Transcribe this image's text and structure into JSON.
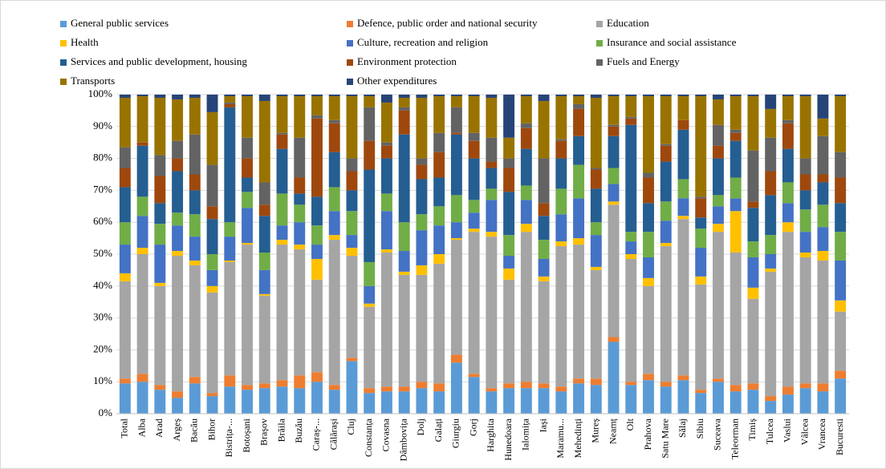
{
  "chart_data": {
    "type": "stacked_bar",
    "categories": [
      "Total",
      "Alba",
      "Arad",
      "Argeș",
      "Bacău",
      "Bihor",
      "Bistrița-...",
      "Botoșani",
      "Brașov",
      "Brăila",
      "Buzău",
      "Caraș-...",
      "Călărași",
      "Cluj",
      "Constanța",
      "Covasna",
      "Dâmbovița",
      "Dolj",
      "Galați",
      "Giurgiu",
      "Gorj",
      "Harghita",
      "Hunedoara",
      "Ialomița",
      "Iași",
      "Maramu...",
      "Mehedinți",
      "Mureș",
      "Neamț",
      "Olt",
      "Prahova",
      "Satu Mare",
      "Sălaj",
      "Sibiu",
      "Suceava",
      "Teleorman",
      "Timiș",
      "Tulcea",
      "Vaslui",
      "Vâlcea",
      "Vrancea",
      "Bucuresti"
    ],
    "series": [
      {
        "name": "General public services",
        "color": "#5b9bd5",
        "values": [
          9.5,
          10,
          7.5,
          5,
          9.5,
          5.5,
          8.5,
          7.5,
          8,
          8.5,
          8,
          10,
          7.5,
          16.5,
          6.5,
          7,
          7,
          8,
          7,
          16,
          11.5,
          7,
          8,
          8,
          8,
          7,
          9.5,
          9,
          22.5,
          9,
          10.5,
          8.5,
          10.5,
          6.5,
          10,
          7,
          7.5,
          4,
          6,
          8,
          7,
          11
        ]
      },
      {
        "name": "Defence, public order and national security",
        "color": "#ed7d31",
        "values": [
          1.5,
          2.5,
          1.5,
          2,
          2,
          1,
          3.5,
          1.5,
          1.5,
          2,
          4,
          3,
          1.5,
          1,
          1.5,
          1.5,
          1.5,
          2,
          2.5,
          2.5,
          1,
          1,
          1.5,
          2,
          1.5,
          1.5,
          1.5,
          2,
          1.5,
          1,
          2,
          1.5,
          1.5,
          1,
          1,
          2,
          2,
          1.5,
          2.5,
          1.5,
          2.5,
          2.5
        ]
      },
      {
        "name": "Education",
        "color": "#a5a5a5",
        "values": [
          30.5,
          37.5,
          31,
          42.5,
          35,
          31.5,
          35.5,
          44,
          27.5,
          42.5,
          39.5,
          29,
          45.5,
          32,
          25.5,
          42,
          35,
          33.5,
          37.5,
          36,
          44.5,
          47.5,
          32.5,
          47,
          32,
          44,
          42,
          34,
          41.5,
          38.5,
          27.5,
          42.5,
          49,
          33,
          46,
          41.5,
          26.5,
          39,
          48.5,
          39.5,
          38.5,
          18.5
        ]
      },
      {
        "name": "Health",
        "color": "#ffc000",
        "values": [
          2.5,
          2,
          1,
          1.5,
          1.5,
          2,
          0.5,
          0.5,
          0.5,
          1.5,
          1.5,
          6.5,
          1.5,
          2.5,
          1,
          1,
          1,
          3,
          3,
          0.5,
          1,
          1.5,
          3.5,
          2.5,
          1.5,
          1.5,
          2,
          1,
          1,
          1.5,
          2.5,
          1,
          1,
          2.5,
          2.5,
          13,
          3.5,
          1,
          3,
          1.5,
          3,
          3.5
        ]
      },
      {
        "name": "Culture, recreation and religion",
        "color": "#4472c4",
        "values": [
          9,
          10,
          12,
          8,
          7.5,
          5,
          7.5,
          11,
          7.5,
          4.5,
          7,
          4.5,
          7.5,
          4,
          5.5,
          12,
          6.5,
          11,
          9,
          5,
          5,
          10,
          4,
          7.5,
          5.5,
          8.5,
          12.5,
          10,
          5.5,
          4,
          6.5,
          7,
          5.5,
          9,
          5.5,
          4,
          9.5,
          4.5,
          6,
          6.5,
          7.5,
          12.5
        ]
      },
      {
        "name": "Insurance and social assistance",
        "color": "#70ad47",
        "values": [
          7,
          6,
          6.5,
          4,
          7,
          5,
          4.5,
          5,
          5.5,
          10,
          5.5,
          6,
          7.5,
          7.5,
          7.5,
          5.5,
          9,
          5,
          6,
          8.5,
          4,
          3.5,
          6.5,
          4.5,
          6,
          8,
          10.5,
          4,
          5,
          3,
          8,
          6,
          6,
          6,
          3.5,
          6.5,
          5,
          6,
          6.5,
          7,
          7,
          9
        ]
      },
      {
        "name": "Services and public development, housing",
        "color": "#255e91",
        "values": [
          11,
          16,
          6.5,
          13,
          7.5,
          11,
          36,
          4.5,
          11.5,
          14,
          3.5,
          9,
          11,
          6.5,
          29,
          11,
          27.5,
          11,
          9,
          19,
          13,
          6.5,
          13.5,
          11.5,
          7.5,
          9.5,
          9,
          10.5,
          10,
          33.5,
          9,
          12.5,
          15.5,
          3.5,
          11.5,
          11.5,
          10.5,
          12.5,
          10.5,
          6,
          7,
          9
        ]
      },
      {
        "name": "Environment protection",
        "color": "#9e480e",
        "values": [
          6,
          1,
          8.5,
          4,
          5,
          4,
          1,
          6,
          3.5,
          4.5,
          5,
          24.5,
          9,
          6,
          9,
          4,
          7.5,
          4.5,
          8,
          0.5,
          5.5,
          2,
          7.5,
          6.5,
          4,
          5.5,
          8.5,
          6,
          3,
          2,
          8,
          5,
          3,
          6,
          4,
          2.5,
          2,
          7.5,
          8,
          5,
          2.5,
          8
        ]
      },
      {
        "name": "Fuels and Energy",
        "color": "#636363",
        "values": [
          6.5,
          0,
          6.5,
          5.5,
          12.5,
          13,
          0.5,
          6.5,
          7,
          0.5,
          12.5,
          1,
          1,
          4,
          10.5,
          1,
          1,
          2,
          6,
          8,
          2.5,
          7.5,
          3,
          1.5,
          14,
          0.5,
          1.5,
          0.5,
          0.5,
          0.5,
          1.5,
          0.5,
          0,
          0.5,
          6.5,
          1,
          16,
          10.5,
          1,
          5,
          12,
          8
        ]
      },
      {
        "name": "Transports",
        "color": "#997300",
        "values": [
          15.5,
          14.5,
          18,
          13,
          11.5,
          16.5,
          2,
          13,
          25.5,
          11.5,
          13,
          6,
          7.5,
          19.5,
          3.5,
          12.5,
          3,
          19,
          11.5,
          3.5,
          11.5,
          12.5,
          6.5,
          8.5,
          18,
          13.5,
          2.5,
          22,
          9,
          6.5,
          24,
          15,
          7.5,
          31.5,
          8,
          10.5,
          17,
          9,
          7.5,
          19.5,
          5.5,
          17.5
        ]
      },
      {
        "name": "Other expenditures",
        "color": "#264478",
        "values": [
          1,
          0.5,
          1,
          1.5,
          1,
          5.5,
          0.5,
          0.5,
          2,
          0.5,
          0.5,
          0.5,
          0.5,
          0.5,
          0.5,
          2.5,
          1,
          1,
          0.5,
          0.5,
          0.5,
          1,
          13.5,
          0.5,
          2,
          0.5,
          0.5,
          1,
          0.5,
          0.5,
          0.5,
          0.5,
          0.5,
          0.5,
          1.5,
          0.5,
          0.5,
          4.5,
          0.5,
          0.5,
          7.5,
          0.5
        ]
      }
    ],
    "ylim": [
      0,
      100
    ],
    "yticks": [
      {
        "value": 0,
        "label": "0%"
      },
      {
        "value": 10,
        "label": "10%"
      },
      {
        "value": 20,
        "label": "20%"
      },
      {
        "value": 30,
        "label": "30%"
      },
      {
        "value": 40,
        "label": "40%"
      },
      {
        "value": 50,
        "label": "50%"
      },
      {
        "value": 60,
        "label": "60%"
      },
      {
        "value": 70,
        "label": "70%"
      },
      {
        "value": 80,
        "label": "80%"
      },
      {
        "value": 90,
        "label": "90%"
      },
      {
        "value": 100,
        "label": "100%"
      }
    ],
    "grid": true,
    "legend": "top"
  }
}
